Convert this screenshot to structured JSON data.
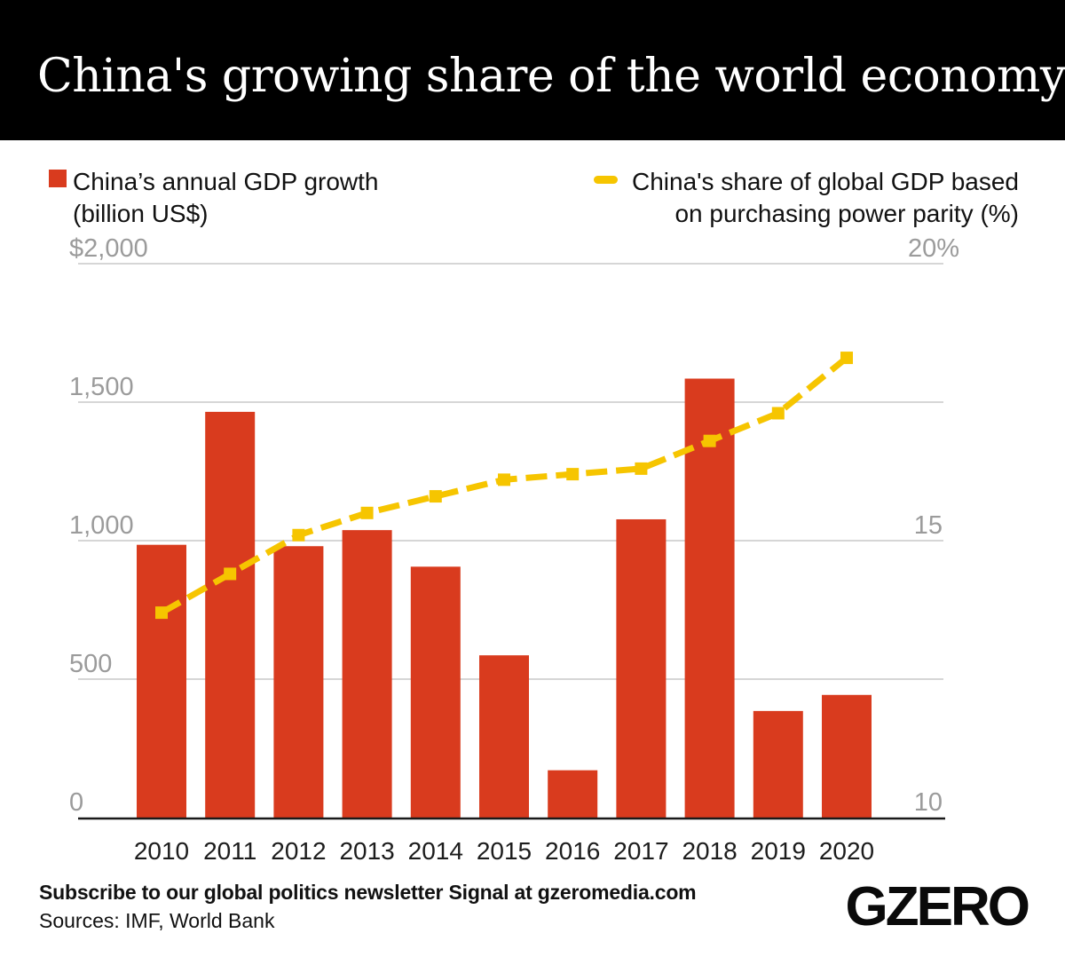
{
  "header": {
    "title": "China's growing share of the world economy"
  },
  "legend": {
    "bars": {
      "label": "China’s annual GDP growth (billion US$)",
      "line1": "China’s annual GDP growth",
      "line2": "(billion US$)"
    },
    "line": {
      "label": "China's share of global GDP based on purchasing power parity (%)",
      "line1": "China's share of global GDP based",
      "line2": "on purchasing power parity (%)"
    }
  },
  "chart_data": {
    "type": "bar",
    "title": "China's growing share of the world economy",
    "categories": [
      "2010",
      "2011",
      "2012",
      "2013",
      "2014",
      "2015",
      "2016",
      "2017",
      "2018",
      "2019",
      "2020"
    ],
    "series": [
      {
        "name": "China's annual GDP growth (billion US$)",
        "type": "bar",
        "values": [
          985,
          1465,
          980,
          1038,
          906,
          586,
          171,
          1077,
          1585,
          385,
          443
        ]
      },
      {
        "name": "China's share of global GDP based on purchasing power parity (%)",
        "type": "line",
        "values": [
          13.7,
          14.4,
          15.1,
          15.5,
          15.8,
          16.1,
          16.2,
          16.3,
          16.8,
          17.3,
          18.3
        ]
      }
    ],
    "left_axis": {
      "tick_labels": [
        "$2,000",
        "1,500",
        "1,000",
        "500",
        "0"
      ],
      "tick_values": [
        2000,
        1500,
        1000,
        500,
        0
      ],
      "range": [
        0,
        2000
      ]
    },
    "right_axis": {
      "tick_labels": [
        "20%",
        "15",
        "10"
      ],
      "tick_values": [
        20,
        15,
        10
      ],
      "range": [
        10,
        20
      ]
    },
    "grid": true,
    "legend_position": "top"
  },
  "footer": {
    "subscribe": "Subscribe to our global politics newsletter Signal at gzeromedia.com",
    "sources": "Sources: IMF, World Bank",
    "logo": "GZERO"
  },
  "colors": {
    "bar_red": "#d93b1e",
    "line_yellow": "#f6c500",
    "gridline": "#c9c9c9",
    "axis_line": "#1a1a1a",
    "tick_label": "#9b9b9b",
    "year_label": "#1c1c1c",
    "header_bg": "#000000",
    "header_text": "#ffffff"
  }
}
